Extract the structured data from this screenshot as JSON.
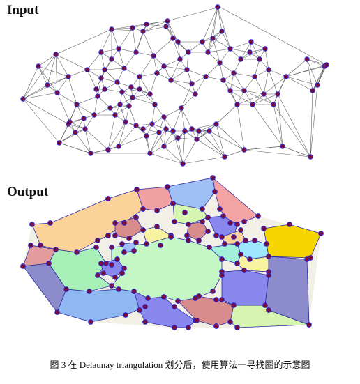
{
  "panels": {
    "input_label": "Input",
    "output_label": "Output"
  },
  "caption": "图 3 在 Delaunay triangulation 划分后，使用算法一寻找圈的示意图",
  "colors": {
    "edge": "#555555",
    "point_fill": "#7a0c3a",
    "point_stroke": "#2b2bd6",
    "region_outline": "#2a2aa0"
  }
}
